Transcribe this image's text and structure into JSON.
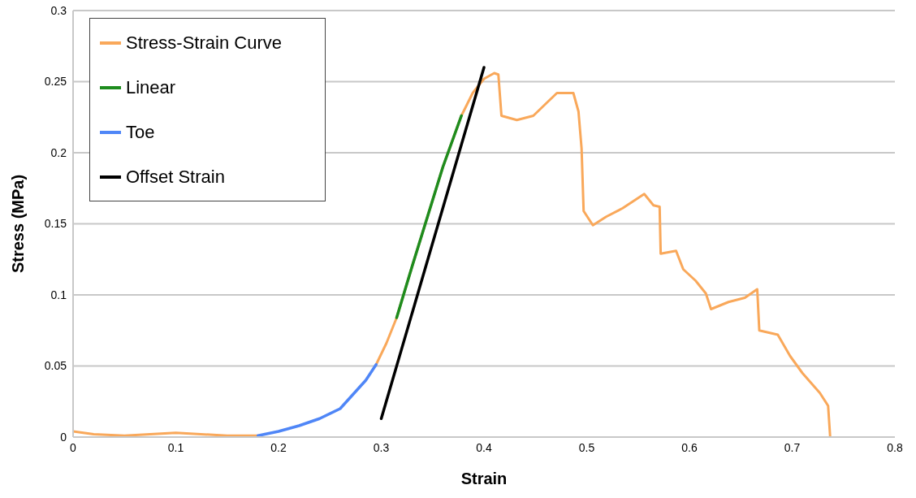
{
  "chart_data": {
    "type": "line",
    "xlabel": "Strain",
    "ylabel": "Stress (MPa)",
    "xlim": [
      0,
      0.8
    ],
    "xticks": [
      0,
      0.1,
      0.2,
      0.3,
      0.4,
      0.5,
      0.6,
      0.7,
      0.8
    ],
    "ylim": [
      0,
      0.3
    ],
    "yticks": [
      0,
      0.05,
      0.1,
      0.15,
      0.2,
      0.25,
      0.3
    ],
    "grid": "y",
    "legend": "top left",
    "marker": "none",
    "line_style": "solid",
    "series": [
      {
        "name": "Stress-Strain Curve",
        "color": "#f9a85a",
        "x": [
          0,
          0.02,
          0.05,
          0.1,
          0.15,
          0.18,
          0.2,
          0.22,
          0.24,
          0.26,
          0.275,
          0.285,
          0.295,
          0.305,
          0.315,
          0.33,
          0.345,
          0.36,
          0.378,
          0.389,
          0.4,
          0.41,
          0.414,
          0.417,
          0.432,
          0.448,
          0.471,
          0.487,
          0.492,
          0.495,
          0.497,
          0.506,
          0.519,
          0.535,
          0.556,
          0.565,
          0.571,
          0.572,
          0.587,
          0.594,
          0.606,
          0.616,
          0.621,
          0.638,
          0.654,
          0.666,
          0.668,
          0.686,
          0.698,
          0.71,
          0.727,
          0.735,
          0.737
        ],
        "values": [
          0.004,
          0.002,
          0.001,
          0.003,
          0.001,
          0.001,
          null,
          null,
          null,
          null,
          null,
          null,
          0.051,
          0.066,
          0.084,
          0.12,
          0.155,
          0.19,
          0.226,
          0.242,
          0.252,
          0.256,
          0.255,
          0.226,
          0.223,
          0.226,
          0.242,
          0.242,
          0.229,
          0.203,
          0.159,
          0.149,
          0.155,
          0.161,
          0.171,
          0.163,
          0.162,
          0.129,
          0.131,
          0.118,
          0.11,
          0.101,
          0.09,
          0.095,
          0.098,
          0.104,
          0.075,
          0.072,
          0.057,
          0.045,
          0.031,
          0.022,
          0
        ]
      },
      {
        "name": "Linear",
        "color": "#1e8c1e",
        "x": [
          0.315,
          0.33,
          0.345,
          0.36,
          0.378
        ],
        "values": [
          0.084,
          0.12,
          0.155,
          0.19,
          0.226
        ]
      },
      {
        "name": "Toe",
        "color": "#4f86f7",
        "x": [
          0.18,
          0.2,
          0.22,
          0.24,
          0.26,
          0.275,
          0.285,
          0.295
        ],
        "values": [
          0.001,
          0.004,
          0.008,
          0.013,
          0.02,
          0.032,
          0.04,
          0.051
        ]
      },
      {
        "name": "Offset Strain",
        "color": "#000000",
        "x": [
          0.3,
          0.4
        ],
        "values": [
          0.013,
          0.26
        ]
      }
    ]
  }
}
